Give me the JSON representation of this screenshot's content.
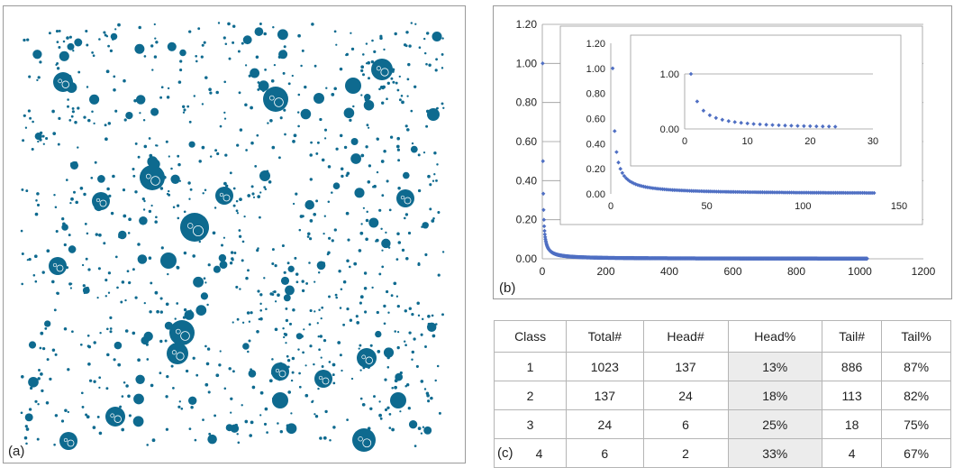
{
  "panel_labels": {
    "a": "(a)",
    "b": "(b)",
    "c": "(c)"
  },
  "colors": {
    "dots": "#0e6a8f",
    "series": "#4f6fc3",
    "grid": "#9a9a9a",
    "shade": "#ececec"
  },
  "chart_data": [
    {
      "type": "scatter",
      "panel": "b-main",
      "xlim": [
        0,
        1200
      ],
      "ylim": [
        0,
        1.2
      ],
      "xticks": [
        "0",
        "200",
        "400",
        "600",
        "800",
        "1000",
        "1200"
      ],
      "yticks": [
        "0.00",
        "0.20",
        "0.40",
        "0.60",
        "0.80",
        "1.00",
        "1.20"
      ],
      "n_points": 1023,
      "series": [
        {
          "x": [
            1,
            2,
            3,
            4,
            5,
            6,
            8,
            10,
            15,
            20,
            30,
            50,
            100,
            200,
            400,
            600,
            800,
            1023
          ],
          "y": [
            1.0,
            0.5,
            0.33,
            0.25,
            0.2,
            0.17,
            0.13,
            0.1,
            0.07,
            0.05,
            0.03,
            0.02,
            0.01,
            0.005,
            0.0,
            0.0,
            0.0,
            0.0
          ]
        }
      ]
    },
    {
      "type": "scatter",
      "panel": "b-inset-1",
      "xlim": [
        0,
        150
      ],
      "ylim": [
        0,
        1.2
      ],
      "xticks": [
        "0",
        "50",
        "100",
        "150"
      ],
      "yticks": [
        "0.00",
        "0.20",
        "0.40",
        "0.60",
        "0.80",
        "1.00",
        "1.20"
      ],
      "n_points": 137,
      "series": [
        {
          "x": [
            1,
            2,
            3,
            5,
            10,
            20,
            40,
            80,
            137
          ],
          "y": [
            1.0,
            0.5,
            0.33,
            0.2,
            0.1,
            0.05,
            0.02,
            0.01,
            0.01
          ]
        }
      ]
    },
    {
      "type": "scatter",
      "panel": "b-inset-2",
      "xlim": [
        0,
        30
      ],
      "ylim": [
        0,
        1.0
      ],
      "xticks": [
        "0",
        "10",
        "20",
        "30"
      ],
      "yticks": [
        "0.00",
        "1.00"
      ],
      "n_points": 24,
      "series": [
        {
          "x": [
            1,
            2,
            3,
            4,
            5,
            6,
            8,
            10,
            15,
            20,
            24
          ],
          "y": [
            1.0,
            0.5,
            0.33,
            0.25,
            0.2,
            0.17,
            0.13,
            0.1,
            0.07,
            0.05,
            0.04
          ]
        }
      ]
    },
    {
      "type": "table",
      "panel": "c",
      "columns": [
        "Class",
        "Total#",
        "Head#",
        "Head%",
        "Tail#",
        "Tail%"
      ],
      "rows": [
        [
          "1",
          "1023",
          "137",
          "13%",
          "886",
          "87%"
        ],
        [
          "2",
          "137",
          "24",
          "18%",
          "113",
          "82%"
        ],
        [
          "3",
          "24",
          "6",
          "25%",
          "18",
          "75%"
        ],
        [
          "4",
          "6",
          "2",
          "33%",
          "4",
          "67%"
        ]
      ]
    }
  ]
}
